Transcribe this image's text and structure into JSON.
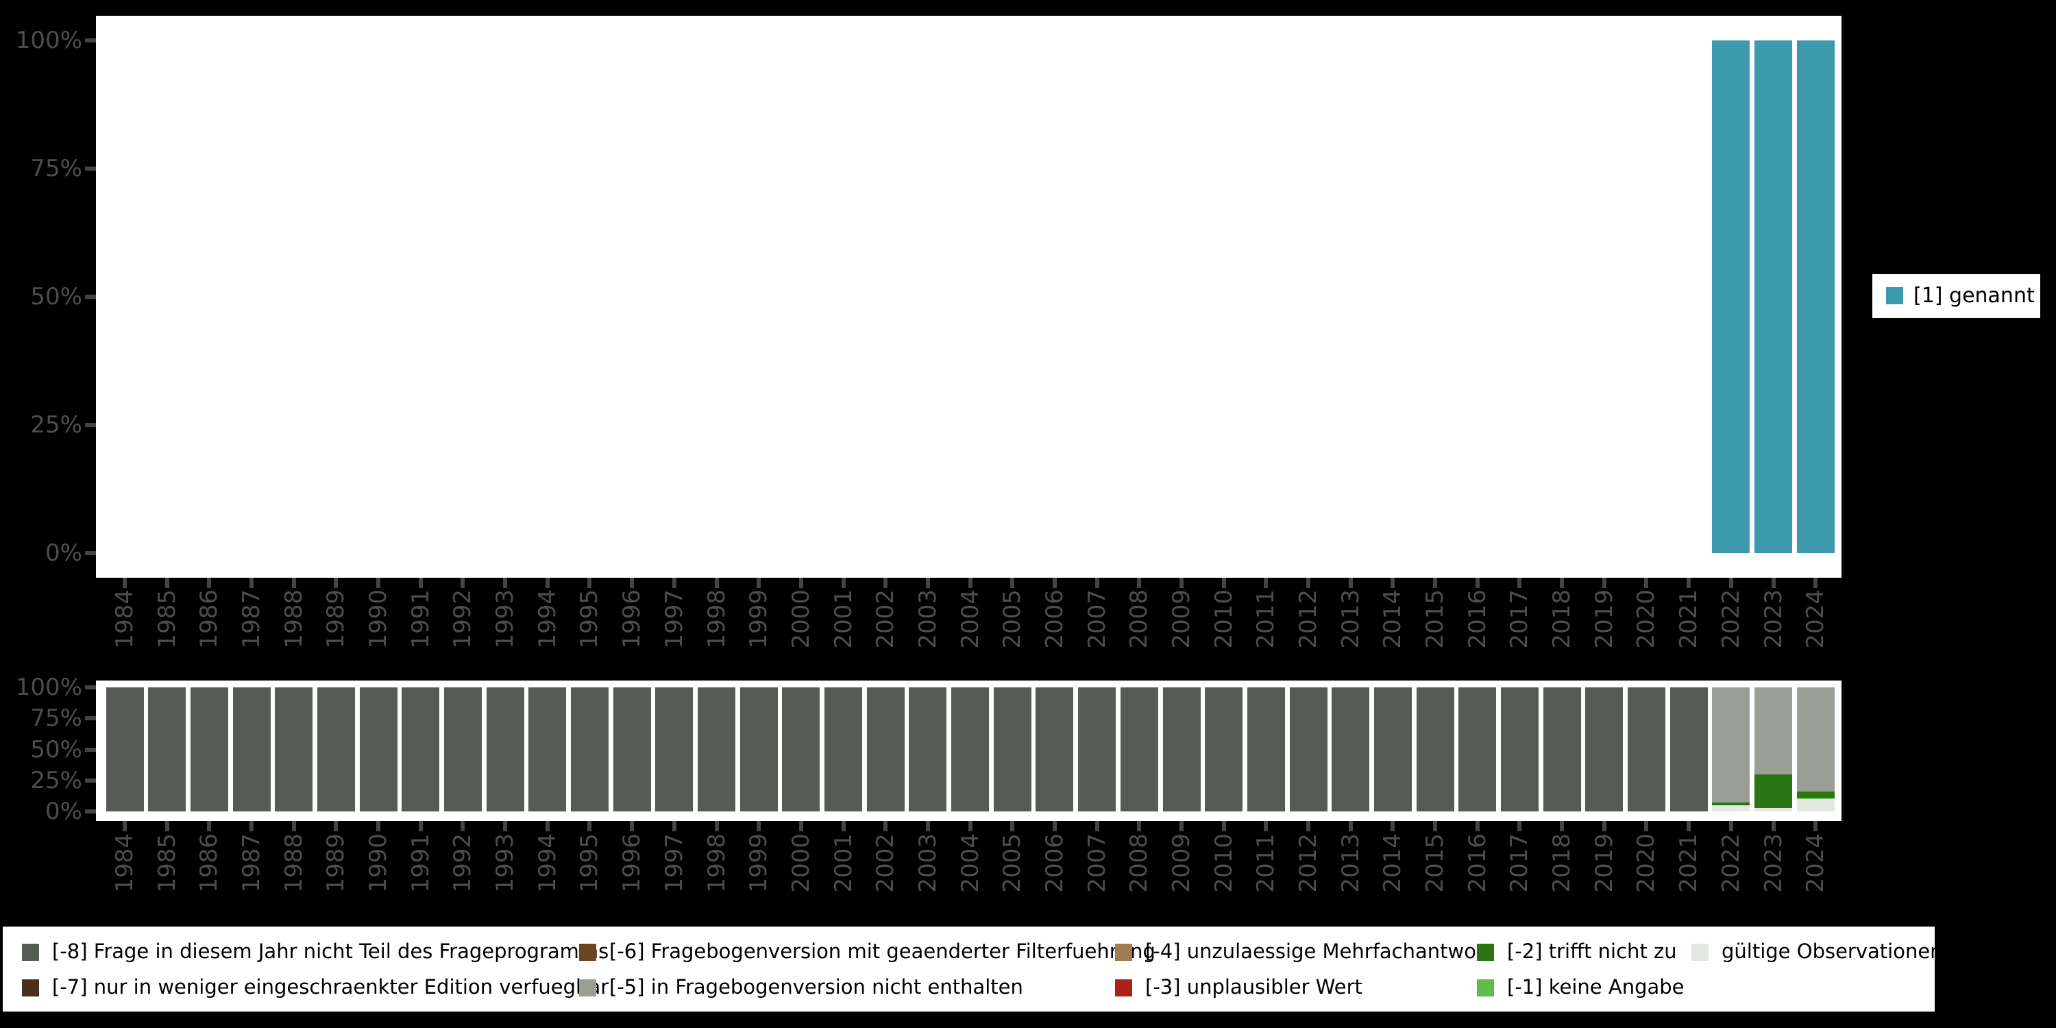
{
  "canvas": {
    "background": "#000000",
    "panel_fill": "#FFFFFF"
  },
  "axis": {
    "text_color": "#4D4D4D",
    "tick_color": "#444444",
    "y_ticks": [
      "100%",
      "75%",
      "50%",
      "25%",
      "0%"
    ]
  },
  "top_legend": {
    "label": "[1] genannt",
    "swatch_color": "#3D99AE"
  },
  "missing_legend": {
    "items": [
      {
        "code": "-8",
        "label": "[-8] Frage in diesem Jahr nicht Teil des Frageprogramms",
        "color": "#565C55"
      },
      {
        "code": "-7",
        "label": "[-7] nur in weniger eingeschraenkter Edition verfuegbar",
        "color": "#4A2F1A"
      },
      {
        "code": "-6",
        "label": "[-6] Fragebogenversion mit geaenderter Filterfuehrung",
        "color": "#6B4423"
      },
      {
        "code": "-5",
        "label": "[-5] in Fragebogenversion nicht enthalten",
        "color": "#9A9F96"
      },
      {
        "code": "-4",
        "label": "[-4] unzulaessige Mehrfachantwort",
        "color": "#A07C52"
      },
      {
        "code": "-3",
        "label": "[-3] unplausibler Wert",
        "color": "#AF2018"
      },
      {
        "code": "-2",
        "label": "[-2] trifft nicht zu",
        "color": "#2A7414"
      },
      {
        "code": "-1",
        "label": "[-1] keine Angabe",
        "color": "#5DBF4A"
      },
      {
        "code": "valid",
        "label": "gültige Observationen",
        "color": "#E3E8E0"
      }
    ]
  },
  "chart_data": [
    {
      "type": "bar",
      "stacked": true,
      "title": "",
      "xlabel": "",
      "ylabel": "",
      "ylim": [
        0,
        100
      ],
      "y_tick_labels": [
        "100%",
        "75%",
        "50%",
        "25%",
        "0%"
      ],
      "x_tick_rotation": 90,
      "grid": false,
      "legend_position": "right",
      "categories": [
        "1984",
        "1985",
        "1986",
        "1987",
        "1988",
        "1989",
        "1990",
        "1991",
        "1992",
        "1993",
        "1994",
        "1995",
        "1996",
        "1997",
        "1998",
        "1999",
        "2000",
        "2001",
        "2002",
        "2003",
        "2004",
        "2005",
        "2006",
        "2007",
        "2008",
        "2009",
        "2010",
        "2011",
        "2012",
        "2013",
        "2014",
        "2015",
        "2016",
        "2017",
        "2018",
        "2019",
        "2020",
        "2021",
        "2022",
        "2023",
        "2024"
      ],
      "series": [
        {
          "name": "[1] genannt",
          "color": "#3D99AE",
          "values": [
            null,
            null,
            null,
            null,
            null,
            null,
            null,
            null,
            null,
            null,
            null,
            null,
            null,
            null,
            null,
            null,
            null,
            null,
            null,
            null,
            null,
            null,
            null,
            null,
            null,
            null,
            null,
            null,
            null,
            null,
            null,
            null,
            null,
            null,
            null,
            null,
            null,
            null,
            100,
            100,
            100
          ]
        }
      ]
    },
    {
      "type": "bar",
      "stacked": true,
      "title": "",
      "xlabel": "",
      "ylabel": "",
      "ylim": [
        0,
        100
      ],
      "y_tick_labels": [
        "100%",
        "75%",
        "50%",
        "25%",
        "0%"
      ],
      "x_tick_rotation": 90,
      "grid": false,
      "legend_position": "bottom",
      "categories": [
        "1984",
        "1985",
        "1986",
        "1987",
        "1988",
        "1989",
        "1990",
        "1991",
        "1992",
        "1993",
        "1994",
        "1995",
        "1996",
        "1997",
        "1998",
        "1999",
        "2000",
        "2001",
        "2002",
        "2003",
        "2004",
        "2005",
        "2006",
        "2007",
        "2008",
        "2009",
        "2010",
        "2011",
        "2012",
        "2013",
        "2014",
        "2015",
        "2016",
        "2017",
        "2018",
        "2019",
        "2020",
        "2021",
        "2022",
        "2023",
        "2024"
      ],
      "series": [
        {
          "name": "[-8] Frage in diesem Jahr nicht Teil des Frageprogramms",
          "color": "#565C55",
          "values": [
            100,
            100,
            100,
            100,
            100,
            100,
            100,
            100,
            100,
            100,
            100,
            100,
            100,
            100,
            100,
            100,
            100,
            100,
            100,
            100,
            100,
            100,
            100,
            100,
            100,
            100,
            100,
            100,
            100,
            100,
            100,
            100,
            100,
            100,
            100,
            100,
            100,
            100,
            null,
            null,
            null
          ]
        },
        {
          "name": "[-5] in Fragebogenversion nicht enthalten",
          "color": "#9A9F96",
          "values": [
            null,
            null,
            null,
            null,
            null,
            null,
            null,
            null,
            null,
            null,
            null,
            null,
            null,
            null,
            null,
            null,
            null,
            null,
            null,
            null,
            null,
            null,
            null,
            null,
            null,
            null,
            null,
            null,
            null,
            null,
            null,
            null,
            null,
            null,
            null,
            null,
            null,
            null,
            93,
            70,
            84
          ]
        },
        {
          "name": "[-2] trifft nicht zu",
          "color": "#2A7414",
          "values": [
            null,
            null,
            null,
            null,
            null,
            null,
            null,
            null,
            null,
            null,
            null,
            null,
            null,
            null,
            null,
            null,
            null,
            null,
            null,
            null,
            null,
            null,
            null,
            null,
            null,
            null,
            null,
            null,
            null,
            null,
            null,
            null,
            null,
            null,
            null,
            null,
            null,
            null,
            2,
            27,
            5
          ]
        },
        {
          "name": "[-1] keine Angabe",
          "color": "#5DBF4A",
          "values": [
            null,
            null,
            null,
            null,
            null,
            null,
            null,
            null,
            null,
            null,
            null,
            null,
            null,
            null,
            null,
            null,
            null,
            null,
            null,
            null,
            null,
            null,
            null,
            null,
            null,
            null,
            null,
            null,
            null,
            null,
            null,
            null,
            null,
            null,
            null,
            null,
            null,
            null,
            null,
            null,
            1
          ]
        },
        {
          "name": "gültige Observationen",
          "color": "#E3E8E0",
          "values": [
            null,
            null,
            null,
            null,
            null,
            null,
            null,
            null,
            null,
            null,
            null,
            null,
            null,
            null,
            null,
            null,
            null,
            null,
            null,
            null,
            null,
            null,
            null,
            null,
            null,
            null,
            null,
            null,
            null,
            null,
            null,
            null,
            null,
            null,
            null,
            null,
            null,
            null,
            5,
            3,
            10
          ]
        }
      ]
    }
  ]
}
